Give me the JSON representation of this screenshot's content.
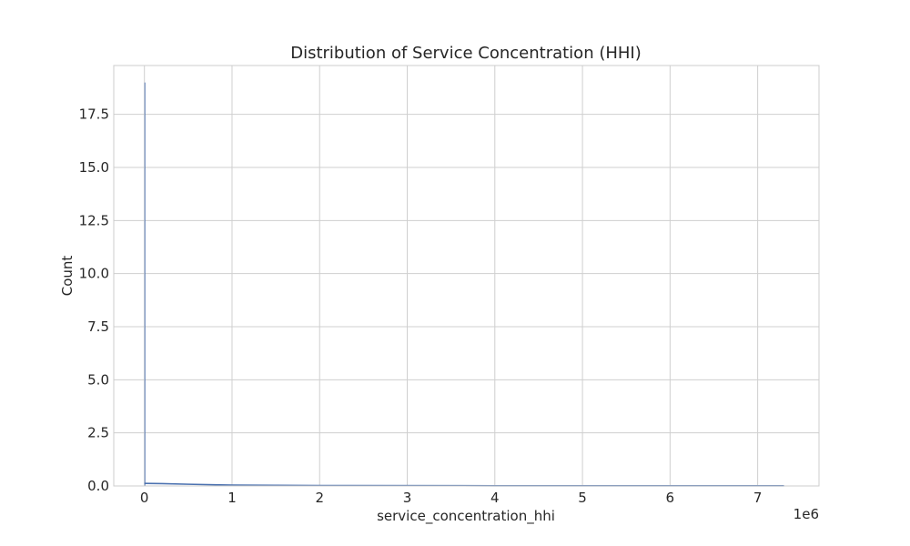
{
  "chart_data": {
    "type": "histogram",
    "title": "Distribution of Service Concentration (HHI)",
    "xlabel": "service_concentration_hhi",
    "ylabel": "Count",
    "x_offset_label": "1e6",
    "xlim": [
      -350000,
      7700000
    ],
    "ylim": [
      0,
      19.8
    ],
    "x_ticks": [
      0,
      1000000,
      2000000,
      3000000,
      4000000,
      5000000,
      6000000,
      7000000
    ],
    "x_tick_labels": [
      "0",
      "1",
      "2",
      "3",
      "4",
      "5",
      "6",
      "7"
    ],
    "y_ticks": [
      0,
      2.5,
      5,
      7.5,
      10,
      12.5,
      15,
      17.5
    ],
    "y_tick_labels": [
      "0.0",
      "2.5",
      "5.0",
      "7.5",
      "10.0",
      "12.5",
      "15.0",
      "17.5"
    ],
    "grid": true,
    "bars": [
      {
        "x0": 0,
        "x1": 7000,
        "count": 19
      }
    ],
    "kde": {
      "x": [
        0,
        200000,
        500000,
        1000000,
        2000000,
        4000000,
        7300000
      ],
      "y": [
        0.12,
        0.11,
        0.08,
        0.04,
        0.02,
        0.01,
        0.01
      ]
    },
    "colors": {
      "bar": "#4c72b0",
      "kde": "#4c72b0"
    }
  }
}
